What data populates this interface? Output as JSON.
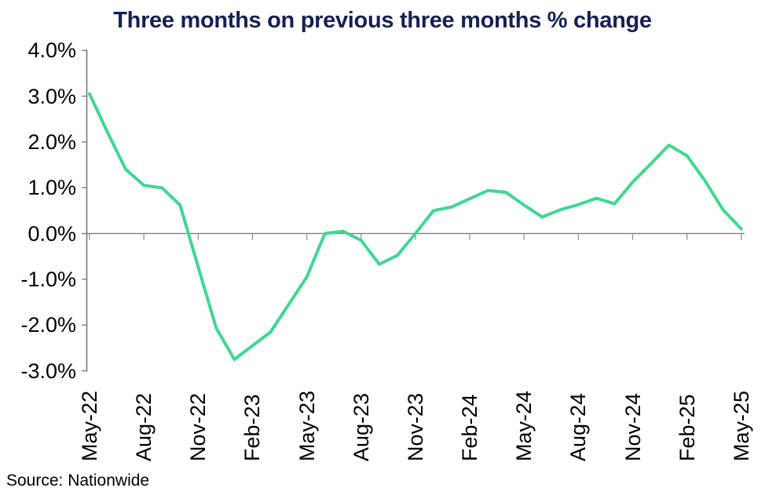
{
  "chart_data": {
    "type": "line",
    "title": "Three months on previous three months % change",
    "unit": "%",
    "x": [
      "May-22",
      "Jun-22",
      "Jul-22",
      "Aug-22",
      "Sep-22",
      "Oct-22",
      "Nov-22",
      "Dec-22",
      "Jan-23",
      "Feb-23",
      "Mar-23",
      "Apr-23",
      "May-23",
      "Jun-23",
      "Jul-23",
      "Aug-23",
      "Sep-23",
      "Oct-23",
      "Nov-23",
      "Dec-23",
      "Jan-24",
      "Feb-24",
      "Mar-24",
      "Apr-24",
      "May-24",
      "Jun-24",
      "Jul-24",
      "Aug-24",
      "Sep-24",
      "Oct-24",
      "Nov-24",
      "Dec-24",
      "Jan-25",
      "Feb-25",
      "Mar-25",
      "Apr-25",
      "May-25"
    ],
    "values": [
      3.05,
      2.2,
      1.4,
      1.05,
      1.0,
      0.62,
      -0.73,
      -2.07,
      -2.75,
      -2.45,
      -2.15,
      -1.55,
      -0.95,
      0.0,
      0.05,
      -0.15,
      -0.67,
      -0.48,
      0.0,
      0.5,
      0.58,
      0.76,
      0.94,
      0.9,
      0.62,
      0.36,
      0.52,
      0.63,
      0.77,
      0.65,
      1.12,
      1.52,
      1.93,
      1.7,
      1.15,
      0.51,
      0.1
    ],
    "ylim": [
      -3.0,
      4.0
    ],
    "ytick_step": 1.0,
    "y_tick_labels": [
      "4.0%",
      "3.0%",
      "2.0%",
      "1.0%",
      "0.0%",
      "-1.0%",
      "-2.0%",
      "-3.0%"
    ],
    "x_tick_labels": [
      "May-22",
      "Aug-22",
      "Nov-22",
      "Feb-23",
      "May-23",
      "Aug-23",
      "Nov-23",
      "Feb-24",
      "May-24",
      "Aug-24",
      "Nov-24",
      "Feb-25",
      "May-25"
    ],
    "x_tick_every": 3,
    "grid": false,
    "legend": "none"
  },
  "source": "Source: Nationwide",
  "colors": {
    "line": "#41d791",
    "title": "#172052",
    "axis": "#7f7f7f",
    "tick": "#999999",
    "text": "#000000",
    "background": "#ffffff"
  }
}
